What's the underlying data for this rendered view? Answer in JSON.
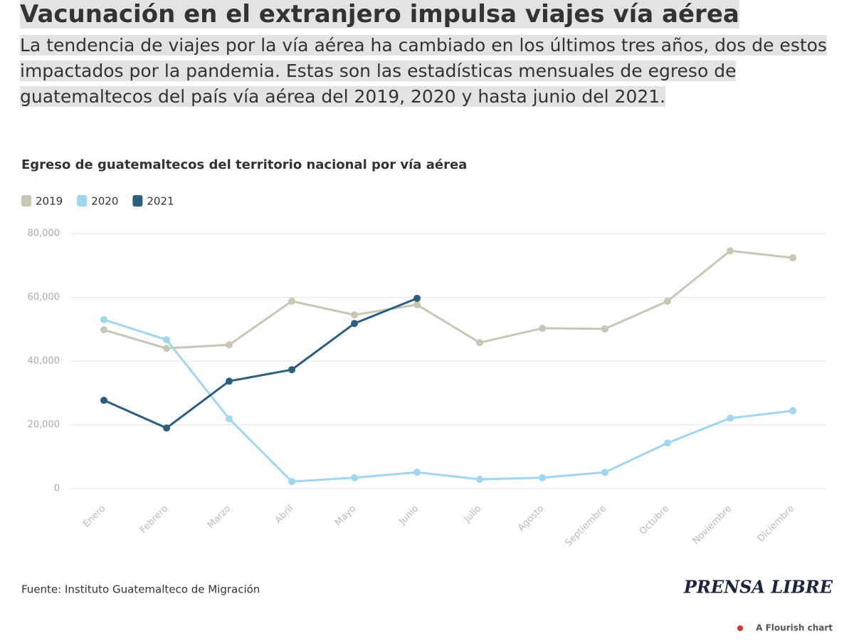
{
  "header": {
    "title": "Vacunación en el extranjero impulsa viajes vía aérea",
    "subtitle": "La tendencia de viajes por la vía aérea ha cambiado en los últimos tres años, dos de estos impactados por la pandemia. Estas son las estadísticas mensuales de egreso de guatemaltecos del país vía aérea del 2019, 2020 y hasta junio del 2021."
  },
  "chart_data": {
    "type": "line",
    "title": "Egreso de guatemaltecos del territorio nacional por vía aérea",
    "categories": [
      "Enero",
      "Febrero",
      "Marzo",
      "Abril",
      "Mayo",
      "Junio",
      "Julio",
      "Agosto",
      "Septiembre",
      "Octubre",
      "Noviembre",
      "Diciembre"
    ],
    "series": [
      {
        "name": "2019",
        "color": "#c9c6b4",
        "values": [
          49800,
          44000,
          45100,
          58800,
          54500,
          57700,
          45800,
          50300,
          50100,
          58800,
          74600,
          72400
        ]
      },
      {
        "name": "2020",
        "color": "#a0d6ef",
        "values": [
          53000,
          46700,
          21900,
          2200,
          3400,
          5100,
          2900,
          3400,
          5100,
          14300,
          22100,
          24400
        ]
      },
      {
        "name": "2021",
        "color": "#2b5f80",
        "values": [
          27700,
          19000,
          33700,
          37300,
          51800,
          59700,
          null,
          null,
          null,
          null,
          null,
          null
        ]
      }
    ],
    "ylim": [
      0,
      80000
    ],
    "yticks": [
      0,
      {
        "value": 20000,
        "label": "20,000"
      },
      {
        "value": 40000,
        "label": "40,000"
      },
      {
        "value": 60000,
        "label": "60,000"
      },
      {
        "value": 80000,
        "label": "80,000"
      }
    ],
    "grid": true
  },
  "footer": {
    "source": "Fuente: Instituto Guatemalteco de Migración",
    "logo": "PRENSA LIBRE",
    "credit": "A Flourish chart"
  }
}
